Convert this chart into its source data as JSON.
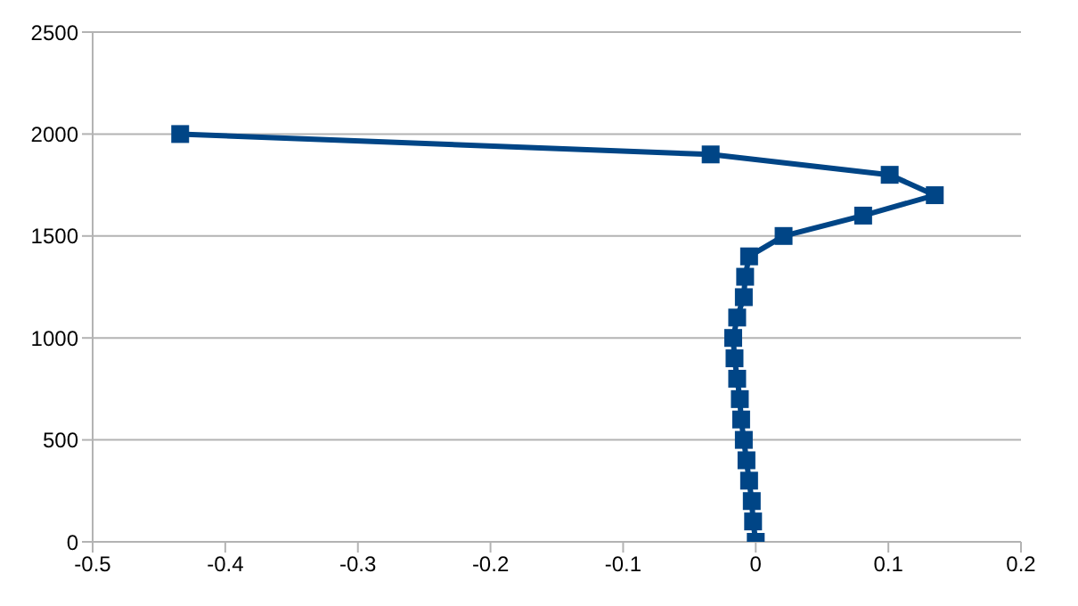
{
  "chart_data": {
    "type": "line",
    "x": [
      0,
      -0.002,
      -0.003,
      -0.005,
      -0.007,
      -0.009,
      -0.011,
      -0.012,
      -0.014,
      -0.016,
      -0.017,
      -0.014,
      -0.009,
      -0.008,
      -0.005,
      0.021,
      0.081,
      0.135,
      0.101,
      -0.034,
      -0.434
    ],
    "series": [
      {
        "color": "#004586",
        "values": [
          0,
          100,
          200,
          300,
          400,
          500,
          600,
          700,
          800,
          900,
          1000,
          1100,
          1200,
          1300,
          1400,
          1500,
          1600,
          1700,
          1800,
          1900,
          2000
        ]
      }
    ],
    "xlim": [
      -0.5,
      0.2
    ],
    "xticks": [
      -0.5,
      -0.4,
      -0.3,
      -0.2,
      -0.1,
      0,
      0.1,
      0.2
    ],
    "ylim": [
      0,
      2500
    ],
    "yticks": [
      0,
      500,
      1000,
      1500,
      2000,
      2500
    ],
    "grid": "y",
    "legend": false,
    "marker": "square",
    "line_style": "solid"
  }
}
